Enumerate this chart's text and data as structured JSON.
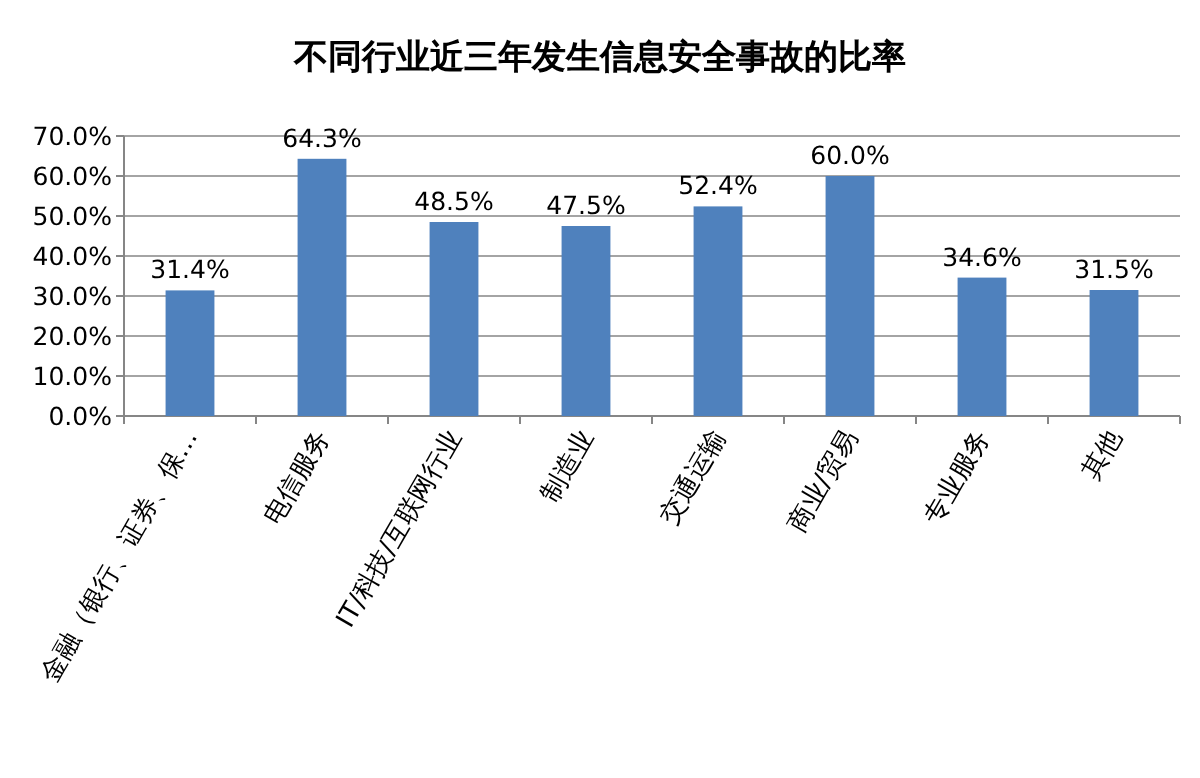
{
  "chart_data": {
    "type": "bar",
    "title": "不同行业近三年发生信息安全事故的比率",
    "categories": [
      "金融（银行、证券、保…",
      "电信服务",
      "IT/科技/互联网行业",
      "制造业",
      "交通运输",
      "商业/贸易",
      "专业服务",
      "其他"
    ],
    "values": [
      31.4,
      64.3,
      48.5,
      47.5,
      52.4,
      60.0,
      34.6,
      31.5
    ],
    "value_labels": [
      "31.4%",
      "64.3%",
      "48.5%",
      "47.5%",
      "52.4%",
      "60.0%",
      "34.6%",
      "31.5%"
    ],
    "color": "#4f81bd",
    "ylim": [
      0,
      70
    ],
    "yticks": [
      {
        "value": 0,
        "label": "0.0%"
      },
      {
        "value": 10,
        "label": "10.0%"
      },
      {
        "value": 20,
        "label": "20.0%"
      },
      {
        "value": 30,
        "label": "30.0%"
      },
      {
        "value": 40,
        "label": "40.0%"
      },
      {
        "value": 50,
        "label": "50.0%"
      },
      {
        "value": 60,
        "label": "60.0%"
      },
      {
        "value": 70,
        "label": "70.0%"
      }
    ],
    "grid": "y"
  }
}
